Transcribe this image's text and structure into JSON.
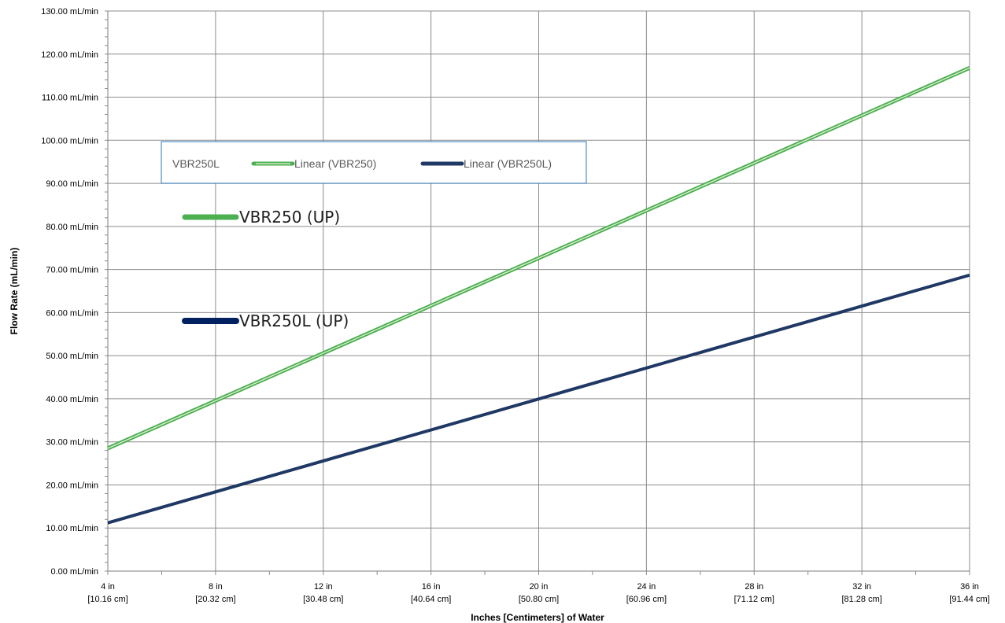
{
  "chart_data": {
    "type": "line",
    "title": "",
    "xlabel": "Inches [Centimeters] of Water",
    "ylabel": "Flow Rate (mL/min)",
    "xlim": [
      4,
      36
    ],
    "ylim": [
      0,
      130
    ],
    "x_ticks": [
      {
        "value": 4,
        "line1": "4 in",
        "line2": "[10.16 cm]"
      },
      {
        "value": 8,
        "line1": "8 in",
        "line2": "[20.32 cm]"
      },
      {
        "value": 12,
        "line1": "12 in",
        "line2": "[30.48 cm]"
      },
      {
        "value": 16,
        "line1": "16 in",
        "line2": "[40.64 cm]"
      },
      {
        "value": 20,
        "line1": "20 in",
        "line2": "[50.80 cm]"
      },
      {
        "value": 24,
        "line1": "24 in",
        "line2": "[60.96 cm]"
      },
      {
        "value": 28,
        "line1": "28 in",
        "line2": "[71.12 cm]"
      },
      {
        "value": 32,
        "line1": "32 in",
        "line2": "[81.28 cm]"
      },
      {
        "value": 36,
        "line1": "36 in",
        "line2": "[91.44 cm]"
      }
    ],
    "y_ticks": [
      {
        "value": 0,
        "label": "0.00 mL/min"
      },
      {
        "value": 10,
        "label": "10.00 mL/min"
      },
      {
        "value": 20,
        "label": "20.00 mL/min"
      },
      {
        "value": 30,
        "label": "30.00 mL/min"
      },
      {
        "value": 40,
        "label": "40.00 mL/min"
      },
      {
        "value": 50,
        "label": "50.00 mL/min"
      },
      {
        "value": 60,
        "label": "60.00 mL/min"
      },
      {
        "value": 70,
        "label": "70.00 mL/min"
      },
      {
        "value": 80,
        "label": "80.00 mL/min"
      },
      {
        "value": 90,
        "label": "90.00 mL/min"
      },
      {
        "value": 100,
        "label": "100.00 mL/min"
      },
      {
        "value": 110,
        "label": "110.00 mL/min"
      },
      {
        "value": 120,
        "label": "120.00 mL/min"
      },
      {
        "value": 130,
        "label": "130.00 mL/min"
      }
    ],
    "grid": true,
    "series": [
      {
        "name": "Linear (VBR250)",
        "color": "#4caf50",
        "style": "double-line",
        "x": [
          4,
          36
        ],
        "y": [
          28.5,
          116.8
        ]
      },
      {
        "name": "Linear (VBR250L)",
        "color": "#1f3864",
        "style": "solid",
        "x": [
          4,
          36
        ],
        "y": [
          11.2,
          68.7
        ]
      }
    ],
    "legend": {
      "placement": "top-left",
      "items": [
        {
          "label": "VBR250L",
          "color": "",
          "marker": "none"
        },
        {
          "label": "Linear (VBR250)",
          "color": "#4caf50",
          "marker": "double-line"
        },
        {
          "label": "Linear (VBR250L)",
          "color": "#1f3864",
          "marker": "line"
        }
      ],
      "border_color": "#2e75b6"
    },
    "annotations": [
      {
        "text": "VBR250 (UP)",
        "color": "#4caf50",
        "x": 8,
        "y": 82
      },
      {
        "text": "VBR250L (UP)",
        "color": "#002060",
        "x": 8,
        "y": 58
      }
    ]
  }
}
